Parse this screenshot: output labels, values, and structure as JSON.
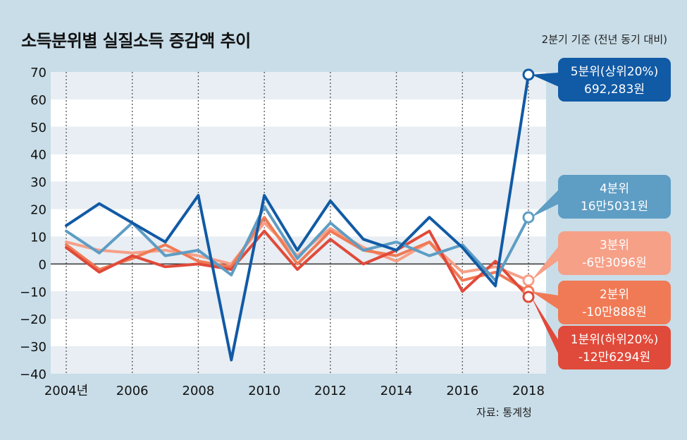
{
  "title": "소득분위별 실질소득 증감액 추이",
  "subtitle": "2분기 기준 (전년 동기 대비)",
  "source": "자료: 통계청",
  "chart_data": {
    "type": "line",
    "title": "소득분위별 실질소득 증감액 추이",
    "ylim": [
      -40,
      70
    ],
    "yticks": [
      70,
      60,
      50,
      40,
      30,
      20,
      10,
      0,
      -10,
      -20,
      -30,
      -40
    ],
    "xticks": [
      {
        "value": 2004,
        "label": "2004년"
      },
      {
        "value": 2006,
        "label": "2006"
      },
      {
        "value": 2008,
        "label": "2008"
      },
      {
        "value": 2010,
        "label": "2010"
      },
      {
        "value": 2012,
        "label": "2012"
      },
      {
        "value": 2014,
        "label": "2014"
      },
      {
        "value": 2016,
        "label": "2016"
      },
      {
        "value": 2018,
        "label": "2018"
      }
    ],
    "x": [
      2004,
      2005,
      2006,
      2007,
      2008,
      2009,
      2010,
      2011,
      2012,
      2013,
      2014,
      2015,
      2016,
      2017,
      2018
    ],
    "series": [
      {
        "key": "q3",
        "color": "#f6a088",
        "values": [
          8,
          5,
          4,
          5,
          3,
          0,
          15,
          3,
          13,
          6,
          1,
          8,
          -3,
          -1,
          -6
        ]
      },
      {
        "key": "q2",
        "color": "#f07a55",
        "values": [
          7,
          -2,
          2,
          7,
          1,
          -1,
          17,
          0,
          12,
          5,
          3,
          8,
          -6,
          -3,
          -10
        ]
      },
      {
        "key": "q1",
        "color": "#e04a3a",
        "values": [
          6,
          -3,
          3,
          -1,
          0,
          -2,
          12,
          -2,
          9,
          0,
          5,
          12,
          -10,
          1,
          -12
        ]
      },
      {
        "key": "q4",
        "color": "#5e9dc4",
        "values": [
          12,
          4,
          15,
          3,
          5,
          -4,
          21,
          2,
          15,
          5,
          8,
          3,
          7,
          -6,
          17
        ]
      },
      {
        "key": "q5",
        "color": "#115aa5",
        "values": [
          14,
          22,
          15,
          8,
          25,
          -35,
          25,
          5,
          23,
          9,
          5,
          17,
          6,
          -8,
          69
        ]
      }
    ],
    "callouts": [
      {
        "key": "q5",
        "color": "#115aa5",
        "lines": [
          "5분위(상위20%)",
          "692,283원"
        ]
      },
      {
        "key": "q4",
        "color": "#5e9dc4",
        "lines": [
          "4분위",
          "16만5031원"
        ]
      },
      {
        "key": "q3",
        "color": "#f6a088",
        "lines": [
          "3분위",
          "-6만3096원"
        ]
      },
      {
        "key": "q2",
        "color": "#f07a55",
        "lines": [
          "2분위",
          "-10만888원"
        ]
      },
      {
        "key": "q1",
        "color": "#e04a3a",
        "lines": [
          "1분위(하위20%)",
          "-12만6294원"
        ]
      }
    ]
  }
}
